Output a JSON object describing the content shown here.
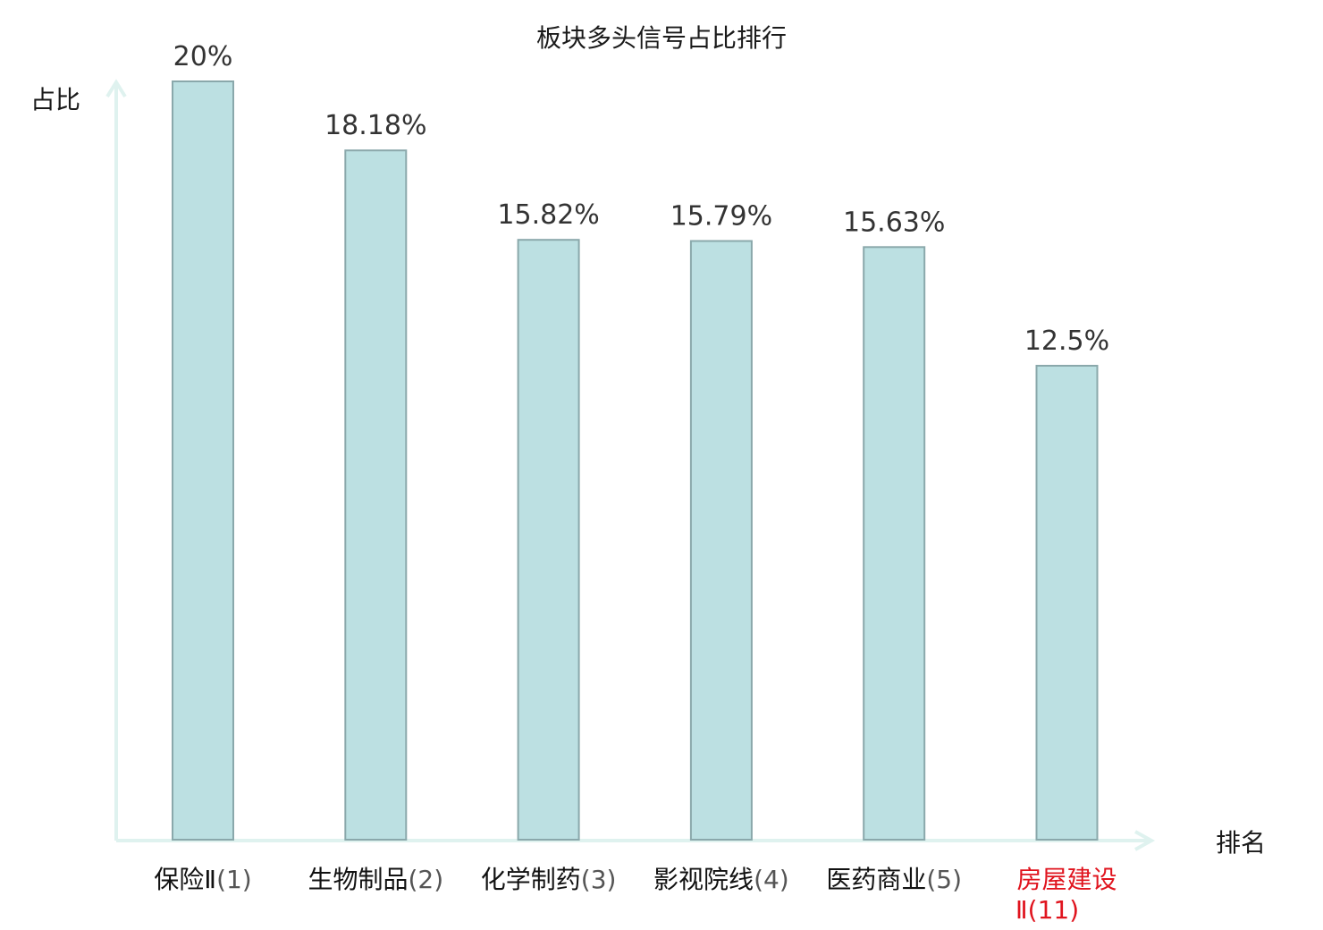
{
  "chart_data": {
    "type": "bar",
    "title": "板块多头信号占比排行",
    "ylabel": "占比",
    "xlabel": "排名",
    "categories": [
      {
        "name": "保险Ⅱ",
        "rank": "(1)",
        "highlight": false
      },
      {
        "name": "生物制品",
        "rank": "(2)",
        "highlight": false
      },
      {
        "name": "化学制药",
        "rank": "(3)",
        "highlight": false
      },
      {
        "name": "影视院线",
        "rank": "(4)",
        "highlight": false
      },
      {
        "name": "医药商业",
        "rank": "(5)",
        "highlight": false
      },
      {
        "name": "房屋建设",
        "name_line2": "Ⅱ",
        "rank": "(11)",
        "highlight": true
      }
    ],
    "values": [
      20,
      18.18,
      15.82,
      15.79,
      15.63,
      12.5
    ],
    "value_labels": [
      "20%",
      "18.18%",
      "15.82%",
      "15.79%",
      "15.63%",
      "12.5%"
    ],
    "unit": "%",
    "ylim": [
      0,
      20
    ],
    "grid": false,
    "colors": {
      "bar_fill": "#bce0e2",
      "bar_stroke": "#8aa8ab",
      "axis": "#dff2ef",
      "highlight_text": "#e0141e"
    }
  }
}
